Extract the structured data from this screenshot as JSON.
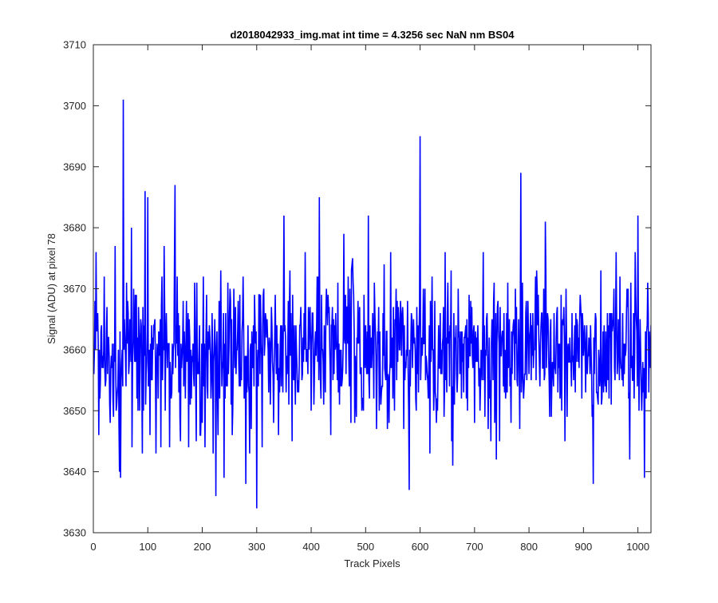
{
  "chart_data": {
    "type": "line",
    "title": "d2018042933_img.mat int time = 4.3256 sec  NaN nm BS04",
    "xlabel": "Track Pixels",
    "ylabel": "Signal (ADU) at pixel 78",
    "xlim": [
      0,
      1024
    ],
    "ylim": [
      3630,
      3710
    ],
    "x_ticks": [
      0,
      100,
      200,
      300,
      400,
      500,
      600,
      700,
      800,
      900,
      1000
    ],
    "y_ticks": [
      3630,
      3640,
      3650,
      3660,
      3670,
      3680,
      3690,
      3700,
      3710
    ],
    "grid": false,
    "legend": "none",
    "series": [
      {
        "color": "#0000ff",
        "x_start": 1,
        "x_step": 1,
        "mean": 3660,
        "values_note_points": [
          [
            1,
            3656
          ],
          [
            5,
            3676
          ],
          [
            10,
            3646
          ],
          [
            20,
            3672
          ],
          [
            30,
            3651
          ],
          [
            40,
            3677
          ],
          [
            48,
            3640
          ],
          [
            50,
            3639
          ],
          [
            55,
            3701
          ],
          [
            60,
            3654
          ],
          [
            70,
            3680
          ],
          [
            80,
            3652
          ],
          [
            90,
            3643
          ],
          [
            95,
            3686
          ],
          [
            100,
            3685
          ],
          [
            115,
            3643
          ],
          [
            130,
            3677
          ],
          [
            140,
            3644
          ],
          [
            150,
            3687
          ],
          [
            160,
            3645
          ],
          [
            175,
            3644
          ],
          [
            200,
            3648
          ],
          [
            210,
            3652
          ],
          [
            220,
            3643
          ],
          [
            225,
            3636
          ],
          [
            240,
            3639
          ],
          [
            255,
            3646
          ],
          [
            280,
            3638
          ],
          [
            300,
            3634
          ],
          [
            310,
            3644
          ],
          [
            330,
            3656
          ],
          [
            350,
            3682
          ],
          [
            365,
            3645
          ],
          [
            400,
            3650
          ],
          [
            415,
            3685
          ],
          [
            440,
            3655
          ],
          [
            460,
            3679
          ],
          [
            480,
            3648
          ],
          [
            505,
            3682
          ],
          [
            525,
            3650
          ],
          [
            580,
            3637
          ],
          [
            600,
            3695
          ],
          [
            625,
            3650
          ],
          [
            660,
            3641
          ],
          [
            700,
            3648
          ],
          [
            740,
            3642
          ],
          [
            785,
            3689
          ],
          [
            790,
            3652
          ],
          [
            830,
            3681
          ],
          [
            870,
            3649
          ],
          [
            918,
            3638
          ],
          [
            940,
            3654
          ],
          [
            960,
            3676
          ],
          [
            985,
            3642
          ],
          [
            1000,
            3682
          ],
          [
            1012,
            3639
          ],
          [
            1020,
            3653
          ]
        ]
      }
    ]
  }
}
